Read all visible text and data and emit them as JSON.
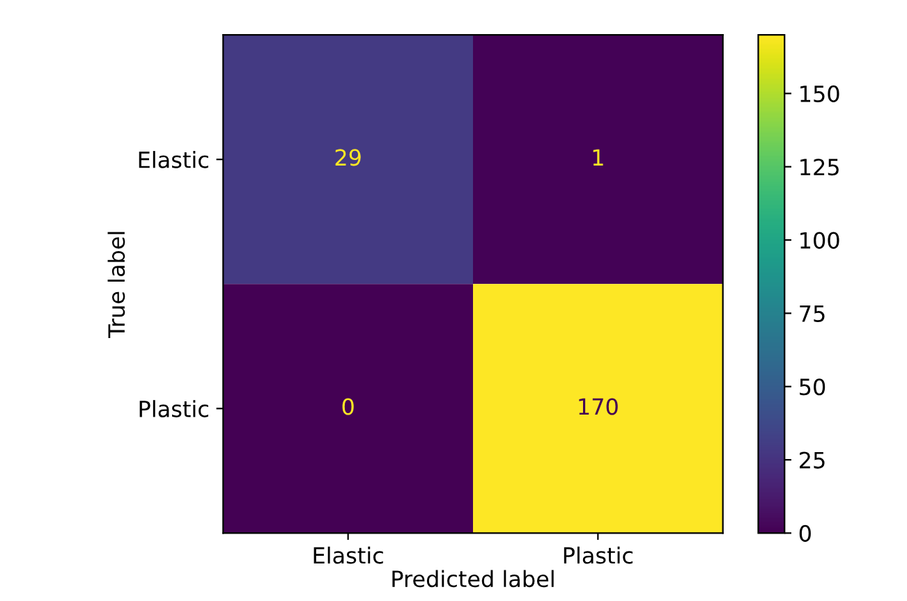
{
  "chart_data": {
    "type": "heatmap",
    "xlabel": "Predicted label",
    "ylabel": "True label",
    "categories": [
      "Elastic",
      "Plastic"
    ],
    "y_categories": [
      "Elastic",
      "Plastic"
    ],
    "cells": [
      [
        29,
        1
      ],
      [
        0,
        170
      ]
    ],
    "clim": [
      0,
      170
    ],
    "cticks": [
      0,
      25,
      50,
      75,
      100,
      125,
      150
    ],
    "data_labels": true
  }
}
